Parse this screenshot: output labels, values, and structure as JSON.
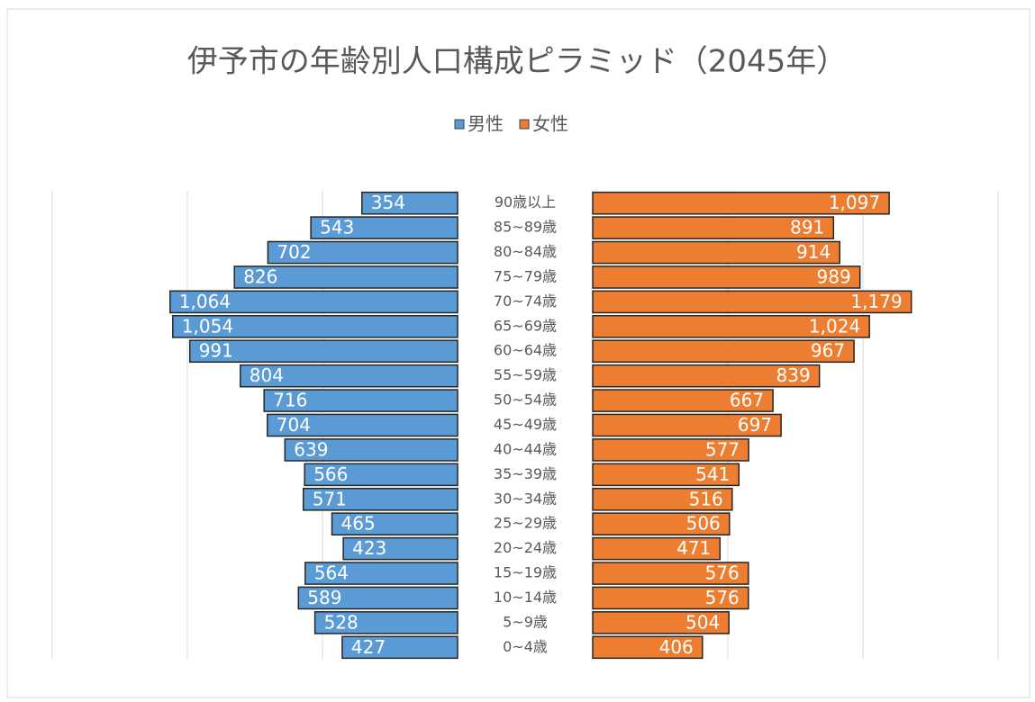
{
  "chart_data": {
    "type": "pyramid",
    "title": "伊予市の年齢別人口構成ピラミッド（2045年）",
    "categories": [
      "90歳以上",
      "85~89歳",
      "80~84歳",
      "75~79歳",
      "70~74歳",
      "65~69歳",
      "60~64歳",
      "55~59歳",
      "50~54歳",
      "45~49歳",
      "40~44歳",
      "35~39歳",
      "30~34歳",
      "25~29歳",
      "20~24歳",
      "15~19歳",
      "10~14歳",
      "5~9歳",
      "0~4歳"
    ],
    "series": [
      {
        "name": "男性",
        "color": "#5b9bd5",
        "values": [
          354,
          543,
          702,
          826,
          1064,
          1054,
          991,
          804,
          716,
          704,
          639,
          566,
          571,
          465,
          423,
          564,
          589,
          528,
          427
        ],
        "value_labels": [
          "354",
          "543",
          "702",
          "826",
          "1,064",
          "1,054",
          "991",
          "804",
          "716",
          "704",
          "639",
          "566",
          "571",
          "465",
          "423",
          "564",
          "589",
          "528",
          "427"
        ]
      },
      {
        "name": "女性",
        "color": "#ed7d31",
        "values": [
          1097,
          891,
          914,
          989,
          1179,
          1024,
          967,
          839,
          667,
          697,
          577,
          541,
          516,
          506,
          471,
          576,
          576,
          504,
          406
        ],
        "value_labels": [
          "1,097",
          "891",
          "914",
          "989",
          "1,179",
          "1,024",
          "967",
          "839",
          "667",
          "697",
          "577",
          "541",
          "516",
          "506",
          "471",
          "576",
          "576",
          "504",
          "406"
        ]
      }
    ],
    "xlim": [
      0,
      1500
    ],
    "xticks": [
      0,
      500,
      1000,
      1500
    ],
    "grid": true,
    "legend": "top"
  }
}
